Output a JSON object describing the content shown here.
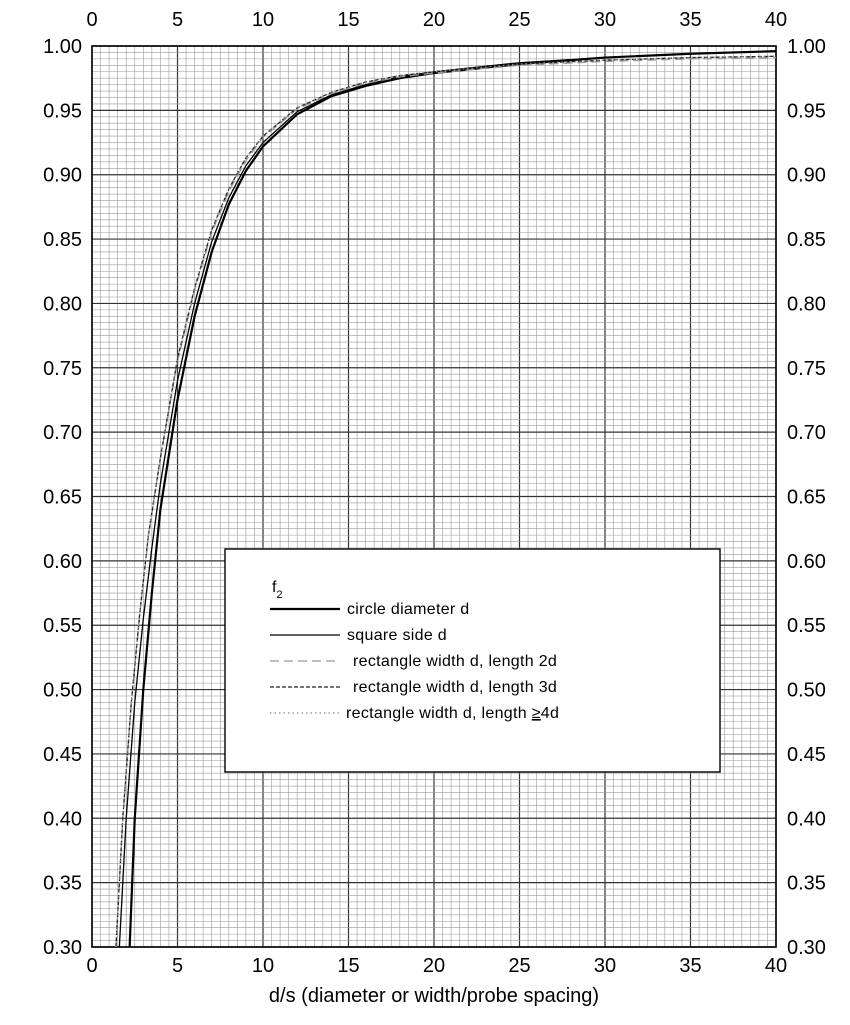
{
  "chart_data": {
    "type": "line",
    "title": "",
    "xlabel": "d/s (diameter or width/probe spacing)",
    "ylabel": "",
    "xlim": [
      0,
      40
    ],
    "ylim": [
      0.3,
      1.0
    ],
    "x_ticks": [
      "0",
      "5",
      "10",
      "15",
      "20",
      "25",
      "30",
      "35",
      "40"
    ],
    "y_ticks": [
      "0.30",
      "0.35",
      "0.40",
      "0.45",
      "0.50",
      "0.55",
      "0.60",
      "0.65",
      "0.70",
      "0.75",
      "0.80",
      "0.85",
      "0.90",
      "0.95",
      "1.00"
    ],
    "grid": true,
    "legend": {
      "placement": "center-right",
      "title_main": "f",
      "title_sub": "2",
      "entries": [
        {
          "label": "circle diameter d",
          "style": "solid-thick"
        },
        {
          "label": "square side d",
          "style": "solid-thin"
        },
        {
          "label": "rectangle width d, length 2d",
          "style": "long-dash"
        },
        {
          "label": "rectangle width d, length 3d",
          "style": "short-dash"
        },
        {
          "label": "rectangle width d, length ",
          "label_underlined": "≥",
          "label_tail": "4d",
          "style": "dotted"
        }
      ]
    },
    "series": [
      {
        "name": "circle diameter d",
        "color": "#000000",
        "points": [
          [
            2.2,
            0.3
          ],
          [
            2.5,
            0.4
          ],
          [
            3,
            0.5
          ],
          [
            3.5,
            0.575
          ],
          [
            4,
            0.64
          ],
          [
            5,
            0.725
          ],
          [
            6,
            0.79
          ],
          [
            7,
            0.84
          ],
          [
            8,
            0.877
          ],
          [
            9,
            0.903
          ],
          [
            10,
            0.922
          ],
          [
            12,
            0.947
          ],
          [
            14,
            0.961
          ],
          [
            16,
            0.969
          ],
          [
            18,
            0.975
          ],
          [
            20,
            0.979
          ],
          [
            25,
            0.986
          ],
          [
            30,
            0.991
          ],
          [
            35,
            0.994
          ],
          [
            40,
            0.996
          ]
        ]
      },
      {
        "name": "square side d",
        "color": "#000000",
        "points": [
          [
            1.6,
            0.3
          ],
          [
            2,
            0.4
          ],
          [
            2.5,
            0.49
          ],
          [
            3,
            0.555
          ],
          [
            3.5,
            0.61
          ],
          [
            4,
            0.66
          ],
          [
            5,
            0.74
          ],
          [
            6,
            0.8
          ],
          [
            7,
            0.848
          ],
          [
            8,
            0.882
          ],
          [
            9,
            0.907
          ],
          [
            10,
            0.925
          ],
          [
            12,
            0.949
          ],
          [
            14,
            0.962
          ],
          [
            16,
            0.97
          ],
          [
            18,
            0.976
          ],
          [
            20,
            0.98
          ],
          [
            25,
            0.987
          ],
          [
            30,
            0.991
          ],
          [
            35,
            0.994
          ],
          [
            40,
            0.996
          ]
        ]
      },
      {
        "name": "rectangle width d, length 2d",
        "color": "#999999",
        "points": [
          [
            1.4,
            0.3
          ],
          [
            1.8,
            0.4
          ],
          [
            2.3,
            0.49
          ],
          [
            2.8,
            0.56
          ],
          [
            3.3,
            0.62
          ],
          [
            4,
            0.68
          ],
          [
            5,
            0.755
          ],
          [
            6,
            0.81
          ],
          [
            7,
            0.855
          ],
          [
            8,
            0.887
          ],
          [
            9,
            0.911
          ],
          [
            10,
            0.929
          ],
          [
            12,
            0.951
          ],
          [
            14,
            0.963
          ],
          [
            16,
            0.971
          ],
          [
            18,
            0.976
          ],
          [
            20,
            0.979
          ],
          [
            25,
            0.985
          ],
          [
            30,
            0.988
          ],
          [
            35,
            0.99
          ],
          [
            40,
            0.991
          ]
        ]
      },
      {
        "name": "rectangle width d, length 3d",
        "color": "#222222",
        "points": [
          [
            1.4,
            0.3
          ],
          [
            1.8,
            0.4
          ],
          [
            2.3,
            0.49
          ],
          [
            2.8,
            0.56
          ],
          [
            3.3,
            0.62
          ],
          [
            4,
            0.68
          ],
          [
            5,
            0.757
          ],
          [
            6,
            0.812
          ],
          [
            7,
            0.857
          ],
          [
            8,
            0.889
          ],
          [
            9,
            0.913
          ],
          [
            10,
            0.93
          ],
          [
            12,
            0.952
          ],
          [
            14,
            0.964
          ],
          [
            16,
            0.972
          ],
          [
            18,
            0.977
          ],
          [
            20,
            0.98
          ],
          [
            25,
            0.986
          ],
          [
            30,
            0.989
          ],
          [
            35,
            0.991
          ],
          [
            40,
            0.992
          ]
        ]
      },
      {
        "name": "rectangle width d, length ≥4d",
        "color": "#888888",
        "points": [
          [
            1.4,
            0.3
          ],
          [
            1.8,
            0.4
          ],
          [
            2.3,
            0.49
          ],
          [
            2.8,
            0.56
          ],
          [
            3.3,
            0.62
          ],
          [
            4,
            0.68
          ],
          [
            5,
            0.757
          ],
          [
            6,
            0.812
          ],
          [
            7,
            0.857
          ],
          [
            8,
            0.889
          ],
          [
            9,
            0.913
          ],
          [
            10,
            0.93
          ],
          [
            12,
            0.952
          ],
          [
            14,
            0.964
          ],
          [
            16,
            0.972
          ],
          [
            18,
            0.977
          ],
          [
            20,
            0.98
          ],
          [
            25,
            0.986
          ],
          [
            30,
            0.989
          ],
          [
            35,
            0.991
          ],
          [
            40,
            0.992
          ]
        ]
      }
    ]
  }
}
